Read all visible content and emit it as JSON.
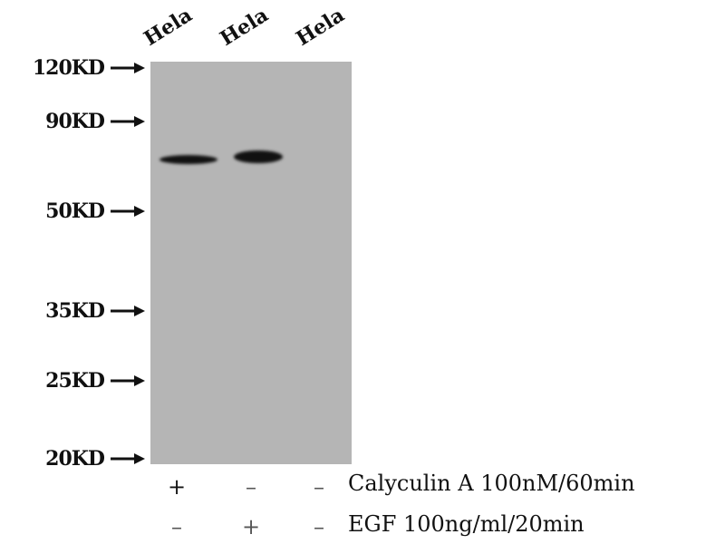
{
  "lanes": [
    {
      "label": "Hela"
    },
    {
      "label": "Hela"
    },
    {
      "label": "Hela"
    }
  ],
  "markers": [
    "120KD",
    "90KD",
    "50KD",
    "35KD",
    "25KD",
    "20KD"
  ],
  "conditions": [
    {
      "label": "Calyculin A 100nM/60min",
      "signs": [
        "+",
        "–",
        "–"
      ]
    },
    {
      "label": "EGF 100ng/ml/20min",
      "signs": [
        "–",
        "+",
        "–"
      ]
    }
  ],
  "colors": {
    "membrane": "#b5b5b5",
    "band": "#111111"
  }
}
